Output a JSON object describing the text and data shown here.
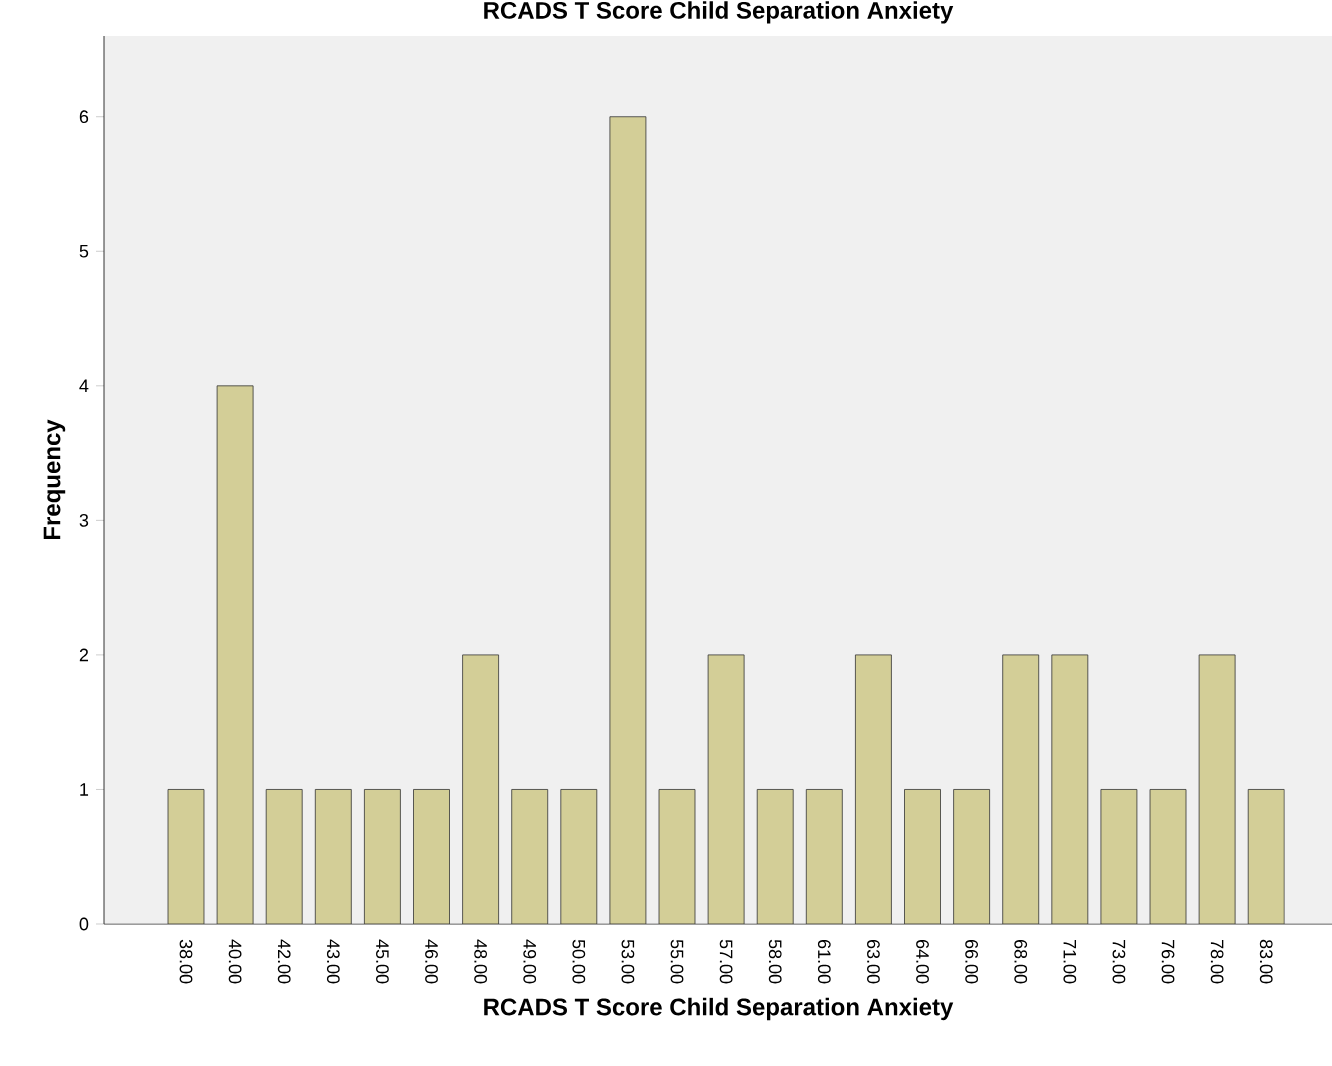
{
  "chart_data": {
    "type": "bar",
    "title": "RCADS T Score Child Separation Anxiety",
    "xlabel": "RCADS T Score Child Separation Anxiety",
    "ylabel": "Frequency",
    "categories": [
      "38.00",
      "40.00",
      "42.00",
      "43.00",
      "45.00",
      "46.00",
      "48.00",
      "49.00",
      "50.00",
      "53.00",
      "55.00",
      "57.00",
      "58.00",
      "61.00",
      "63.00",
      "64.00",
      "66.00",
      "68.00",
      "71.00",
      "73.00",
      "76.00",
      "78.00",
      "83.00"
    ],
    "values": [
      1,
      4,
      1,
      1,
      1,
      1,
      2,
      1,
      1,
      6,
      1,
      2,
      1,
      1,
      2,
      1,
      1,
      2,
      2,
      1,
      1,
      2,
      1
    ],
    "color": "#d3ce97",
    "ylim": [
      0,
      6.6
    ],
    "yticks": [
      0,
      1,
      2,
      3,
      4,
      5,
      6
    ]
  }
}
